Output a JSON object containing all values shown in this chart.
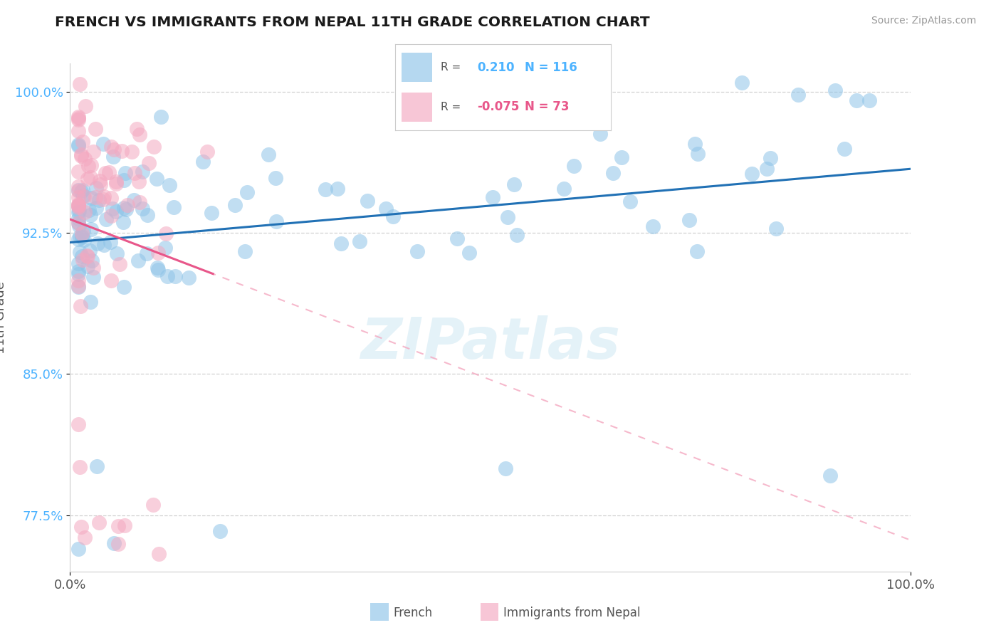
{
  "title": "FRENCH VS IMMIGRANTS FROM NEPAL 11TH GRADE CORRELATION CHART",
  "source": "Source: ZipAtlas.com",
  "ylabel": "11th Grade",
  "xlim": [
    0.0,
    1.0
  ],
  "ylim": [
    0.745,
    1.015
  ],
  "yticks": [
    0.775,
    0.85,
    0.925,
    1.0
  ],
  "ytick_labels": [
    "77.5%",
    "85.0%",
    "92.5%",
    "100.0%"
  ],
  "xticks": [
    0.0,
    1.0
  ],
  "xtick_labels": [
    "0.0%",
    "100.0%"
  ],
  "french_color": "#8ec4e8",
  "french_line_color": "#2171b5",
  "nepal_color": "#f4a8c0",
  "nepal_line_color": "#e8578a",
  "french_R": 0.21,
  "french_N": 116,
  "nepal_R": -0.075,
  "nepal_N": 73,
  "legend_french_label": "French",
  "legend_nepal_label": "Immigrants from Nepal",
  "watermark": "ZIPatlas",
  "tick_color": "#4db3ff",
  "title_color": "#1a1a1a",
  "source_color": "#999999",
  "grid_color": "#cccccc",
  "label_color": "#555555"
}
